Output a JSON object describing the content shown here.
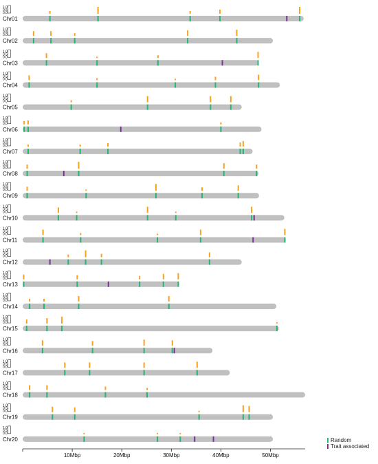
{
  "chart_data": {
    "type": "chromosome_marker_map",
    "x_axis": {
      "range": [
        0,
        57
      ],
      "unit": "Mbp",
      "ticks": [
        0,
        10,
        20,
        30,
        40,
        50
      ],
      "tick_labels": [
        "",
        "10Mbp",
        "20Mbp",
        "30Mbp",
        "40Mbp",
        "50Mbp"
      ]
    },
    "track_scale_labels": [
      "1.0",
      "0.5",
      "0.0"
    ],
    "colors": {
      "chromosome": "#c0c0c0",
      "random": "#22b573",
      "trait": "#7b3294",
      "score": "#f7a21b"
    },
    "legend": [
      {
        "label": "Random",
        "color": "#22b573"
      },
      {
        "label": "Trait associated",
        "color": "#7b3294"
      }
    ],
    "chromosomes": [
      {
        "name": "Chr01",
        "length": 56.7,
        "random": [
          5.5,
          15.2,
          33.8,
          39.8,
          55.9
        ],
        "trait": [
          53.3
        ],
        "scores": [
          [
            5.5,
            0.4
          ],
          [
            15.2,
            1.0
          ],
          [
            33.8,
            0.4
          ],
          [
            39.8,
            0.6
          ],
          [
            55.9,
            1.0
          ]
        ]
      },
      {
        "name": "Chr02",
        "length": 50.5,
        "random": [
          2.2,
          5.7,
          10.5,
          33.3,
          43.2
        ],
        "trait": [],
        "scores": [
          [
            2.2,
            0.7
          ],
          [
            5.7,
            0.7
          ],
          [
            10.5,
            0.4
          ],
          [
            33.3,
            0.8
          ],
          [
            43.2,
            0.9
          ]
        ]
      },
      {
        "name": "Chr03",
        "length": 47.6,
        "random": [
          4.8,
          15.0,
          27.3,
          47.5
        ],
        "trait": [
          40.3
        ],
        "scores": [
          [
            4.8,
            0.7
          ],
          [
            15.0,
            0.2
          ],
          [
            27.3,
            0.4
          ],
          [
            47.5,
            0.9
          ]
        ]
      },
      {
        "name": "Chr04",
        "length": 51.9,
        "random": [
          1.3,
          15.0,
          30.8,
          38.9,
          47.6
        ],
        "trait": [],
        "scores": [
          [
            1.3,
            0.7
          ],
          [
            15.0,
            0.3
          ],
          [
            30.8,
            0.2
          ],
          [
            38.9,
            0.5
          ],
          [
            47.6,
            0.8
          ]
        ]
      },
      {
        "name": "Chr05",
        "length": 44.2,
        "random": [
          9.8,
          25.2,
          37.9,
          42.0
        ],
        "trait": [],
        "scores": [
          [
            9.8,
            0.3
          ],
          [
            25.2,
            0.9
          ],
          [
            37.9,
            0.9
          ],
          [
            42.0,
            0.9
          ]
        ]
      },
      {
        "name": "Chr06",
        "length": 48.2,
        "random": [
          0.3,
          1.1,
          40.0
        ],
        "trait": [
          19.8
        ],
        "scores": [
          [
            0.3,
            0.5
          ],
          [
            1.1,
            0.6
          ],
          [
            40.0,
            0.3
          ]
        ]
      },
      {
        "name": "Chr07",
        "length": 46.4,
        "random": [
          1.1,
          11.6,
          17.2,
          43.9,
          44.5
        ],
        "trait": [],
        "scores": [
          [
            1.1,
            0.3
          ],
          [
            11.6,
            0.3
          ],
          [
            17.2,
            0.5
          ],
          [
            43.9,
            0.6
          ],
          [
            44.5,
            0.8
          ]
        ]
      },
      {
        "name": "Chr08",
        "length": 47.6,
        "random": [
          0.9,
          11.3,
          40.6,
          47.2
        ],
        "trait": [
          8.3
        ],
        "scores": [
          [
            0.9,
            0.6
          ],
          [
            11.3,
            1.0
          ],
          [
            40.6,
            0.8
          ],
          [
            47.2,
            0.6
          ]
        ]
      },
      {
        "name": "Chr09",
        "length": 47.7,
        "random": [
          0.9,
          12.8,
          26.9,
          36.2,
          43.5
        ],
        "trait": [],
        "scores": [
          [
            0.9,
            0.6
          ],
          [
            12.8,
            0.2
          ],
          [
            26.9,
            1.0
          ],
          [
            36.2,
            0.5
          ],
          [
            43.5,
            0.8
          ]
        ]
      },
      {
        "name": "Chr10",
        "length": 52.8,
        "random": [
          7.2,
          10.9,
          25.2,
          30.9,
          46.2
        ],
        "trait": [
          46.7
        ],
        "scores": [
          [
            7.2,
            0.8
          ],
          [
            10.9,
            0.2
          ],
          [
            25.2,
            0.9
          ],
          [
            30.9,
            0.2
          ],
          [
            46.2,
            0.9
          ]
        ]
      },
      {
        "name": "Chr11",
        "length": 53.1,
        "random": [
          4.1,
          11.7,
          27.2,
          35.9,
          52.9
        ],
        "trait": [
          46.5
        ],
        "scores": [
          [
            4.1,
            0.8
          ],
          [
            11.7,
            0.3
          ],
          [
            27.2,
            0.2
          ],
          [
            35.9,
            0.8
          ],
          [
            52.9,
            0.9
          ]
        ]
      },
      {
        "name": "Chr12",
        "length": 44.2,
        "random": [
          9.2,
          12.7,
          15.9,
          37.7
        ],
        "trait": [
          5.5
        ],
        "scores": [
          [
            9.2,
            0.4
          ],
          [
            12.7,
            1.0
          ],
          [
            15.9,
            0.5
          ],
          [
            37.7,
            0.7
          ]
        ]
      },
      {
        "name": "Chr13",
        "length": 31.6,
        "random": [
          0.2,
          11.0,
          23.6,
          28.4,
          31.4
        ],
        "trait": [
          17.3
        ],
        "scores": [
          [
            0.2,
            0.7
          ],
          [
            11.0,
            0.6
          ],
          [
            23.6,
            0.5
          ],
          [
            28.4,
            0.8
          ],
          [
            31.4,
            0.9
          ]
        ]
      },
      {
        "name": "Chr14",
        "length": 51.2,
        "random": [
          1.4,
          4.3,
          11.3,
          29.5
        ],
        "trait": [],
        "scores": [
          [
            1.4,
            0.4
          ],
          [
            4.3,
            0.4
          ],
          [
            11.3,
            0.8
          ],
          [
            29.5,
            0.8
          ]
        ]
      },
      {
        "name": "Chr15",
        "length": 51.7,
        "random": [
          0.8,
          4.9,
          7.9,
          51.3
        ],
        "trait": [],
        "scores": [
          [
            0.8,
            0.6
          ],
          [
            4.9,
            0.8
          ],
          [
            7.9,
            1.0
          ],
          [
            51.3,
            0.2
          ]
        ]
      },
      {
        "name": "Chr16",
        "length": 38.3,
        "random": [
          4.0,
          14.1,
          24.5,
          30.2
        ],
        "trait": [
          30.6
        ],
        "scores": [
          [
            4.0,
            0.8
          ],
          [
            14.1,
            0.7
          ],
          [
            24.5,
            0.9
          ],
          [
            30.2,
            0.8
          ]
        ]
      },
      {
        "name": "Chr17",
        "length": 41.8,
        "random": [
          8.5,
          13.5,
          24.5,
          35.2
        ],
        "trait": [],
        "scores": [
          [
            8.5,
            0.8
          ],
          [
            13.5,
            0.8
          ],
          [
            24.5,
            0.8
          ],
          [
            35.2,
            0.9
          ]
        ]
      },
      {
        "name": "Chr18",
        "length": 57.0,
        "random": [
          1.4,
          4.9,
          16.7,
          25.1
        ],
        "trait": [],
        "scores": [
          [
            1.4,
            0.7
          ],
          [
            4.9,
            0.7
          ],
          [
            16.7,
            0.5
          ],
          [
            25.1,
            0.3
          ]
        ]
      },
      {
        "name": "Chr19",
        "length": 50.5,
        "random": [
          6.0,
          10.5,
          35.6,
          44.5,
          45.7
        ],
        "trait": [],
        "scores": [
          [
            6.0,
            0.8
          ],
          [
            10.5,
            0.7
          ],
          [
            35.6,
            0.2
          ],
          [
            44.5,
            1.0
          ],
          [
            45.7,
            0.9
          ]
        ]
      },
      {
        "name": "Chr20",
        "length": 50.5,
        "random": [
          12.4,
          27.2,
          31.8
        ],
        "trait": [
          34.7,
          38.5
        ],
        "scores": [
          [
            12.4,
            0.2
          ],
          [
            27.2,
            0.2
          ],
          [
            31.8,
            0.2
          ]
        ]
      }
    ]
  }
}
